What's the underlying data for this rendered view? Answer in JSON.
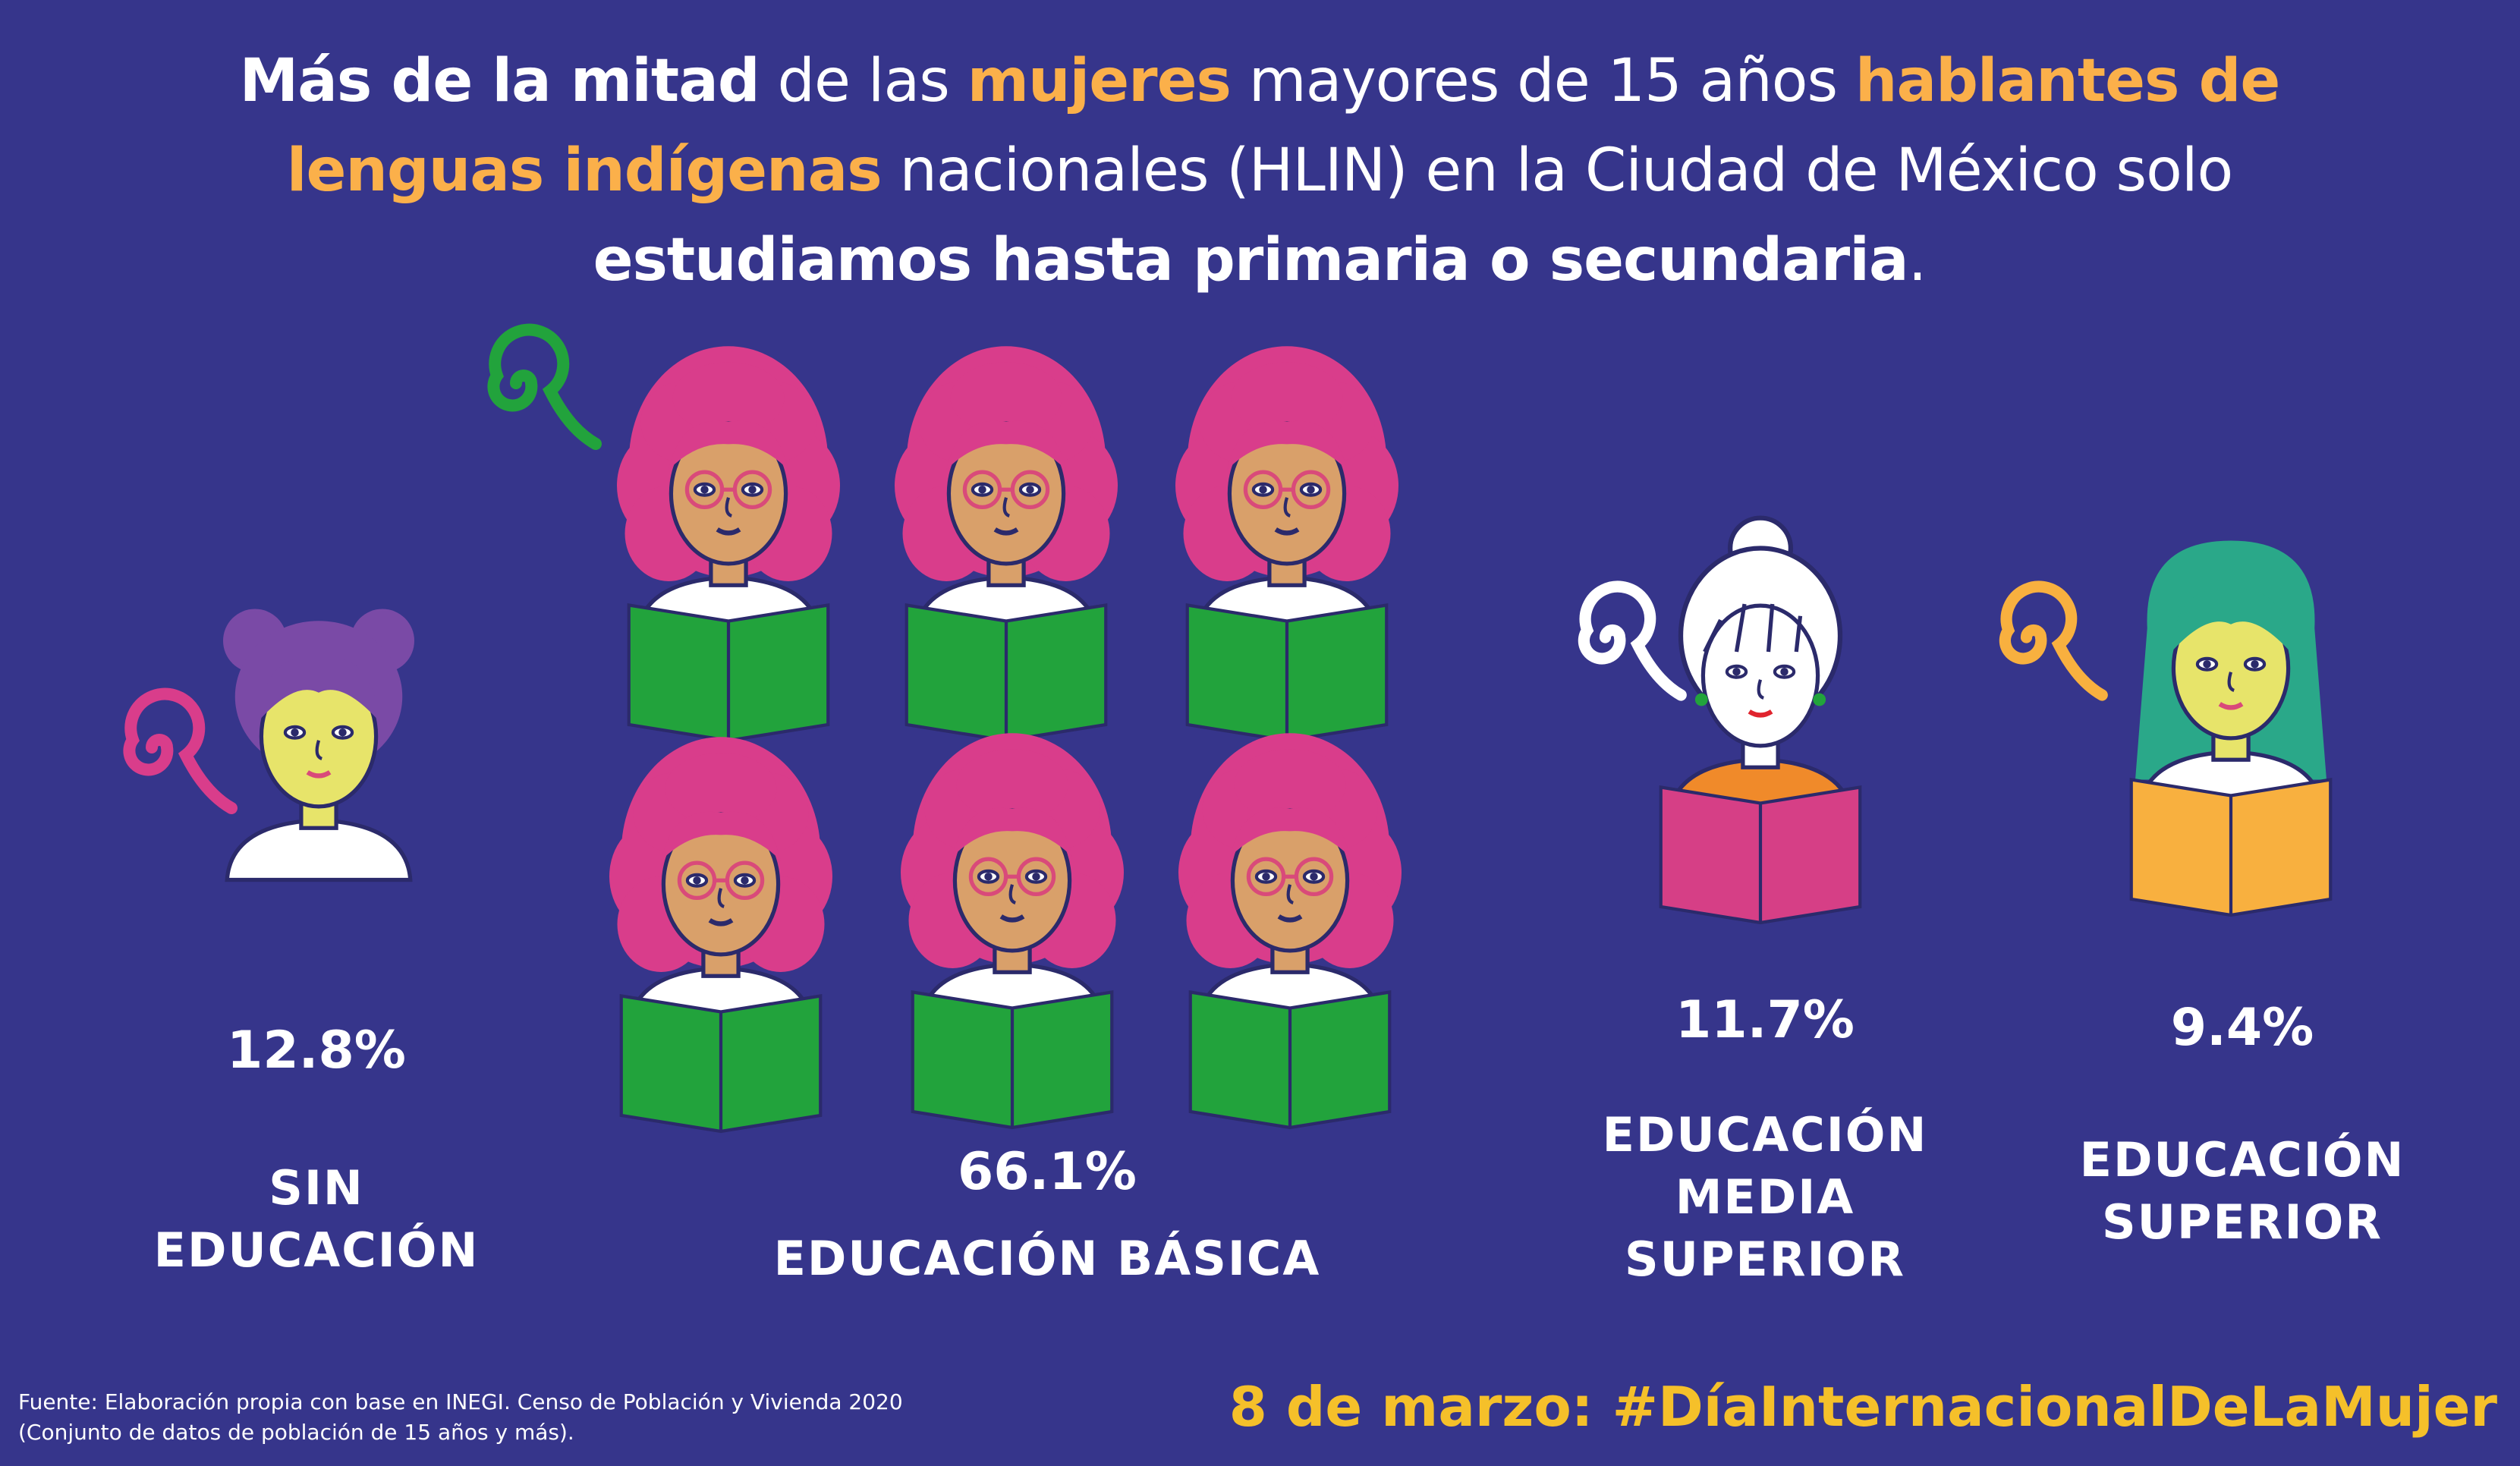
{
  "title": {
    "p1": "Más de la mitad",
    "p2": " de las ",
    "p3": "mujeres",
    "p4": " mayores de 15 años ",
    "p5": "hablantes de lenguas indígenas",
    "p6": " nacionales (HLIN) en la Ciudad de México solo ",
    "p7": "estudiamos hasta primaria o secundaria",
    "p8": "."
  },
  "chart_data": {
    "type": "pictograph",
    "categories": [
      "SIN EDUCACIÓN",
      "EDUCACIÓN BÁSICA",
      "EDUCACIÓN MEDIA SUPERIOR",
      "EDUCACIÓN SUPERIOR"
    ],
    "values": [
      12.8,
      66.1,
      11.7,
      9.4
    ],
    "value_labels": [
      "12.8%",
      "66.1%",
      "11.7%",
      "9.4%"
    ],
    "icon_counts": [
      1,
      6,
      1,
      1
    ],
    "label_lines": [
      [
        "SIN",
        "EDUCACIÓN"
      ],
      [
        "EDUCACIÓN BÁSICA"
      ],
      [
        "EDUCACIÓN",
        "MEDIA",
        "SUPERIOR"
      ],
      [
        "EDUCACIÓN",
        "SUPERIOR"
      ]
    ]
  },
  "colors": {
    "background": "#36358b",
    "accent_orange": "#fbb04a",
    "hashtag_yellow": "#f5c02a",
    "hair_pink": "#d93d8b",
    "book_green": "#22a33c",
    "book_pink": "#d63f86",
    "book_orange": "#f8b03f",
    "hair_purple": "#7a4aa6",
    "hair_teal": "#2aa889"
  },
  "icons": [
    "woman-icon",
    "swirl-icon",
    "book-icon"
  ],
  "footer": {
    "source_line1": "Fuente: Elaboración propia con base en INEGI. Censo de Población y Vivienda 2020",
    "source_line2": " (Conjunto de datos de población de 15  años y más).",
    "hashtag": "8 de marzo: #DíaInternacionalDeLaMujer"
  }
}
